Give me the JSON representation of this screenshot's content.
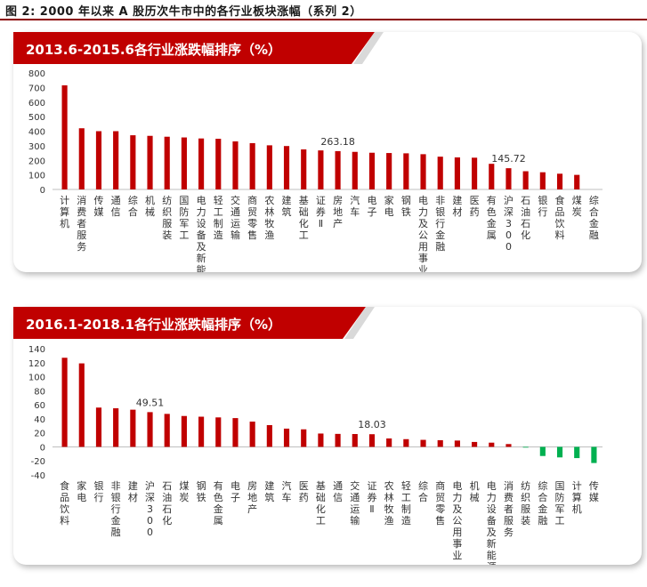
{
  "figure": {
    "title": "图 2: 2000 年以来 A 股历次牛市中的各行业板块涨幅（系列 2）",
    "colors": {
      "positive": "#c00000",
      "negative": "#00b050",
      "banner": "#c00000",
      "banner_text": "#ffffff"
    }
  },
  "chart_data": [
    {
      "type": "bar",
      "title": "2013.6-2015.6各行业涨跌幅排序（%）",
      "categories": [
        "计算机",
        "消费者服务",
        "传媒",
        "通信",
        "综合",
        "机械",
        "纺织服装",
        "国防军工",
        "电力设备及新能源",
        "轻工制造",
        "交通运输",
        "商贸零售",
        "农林牧渔",
        "建筑",
        "基础化工",
        "证券Ⅱ",
        "房地产",
        "汽车",
        "电子",
        "家电",
        "钢铁",
        "电力及公用事业",
        "非银行金融",
        "建材",
        "医药",
        "有色金属",
        "沪深300",
        "石油石化",
        "银行",
        "食品饮料",
        "煤炭",
        "综合金融"
      ],
      "values": [
        715,
        420,
        400,
        400,
        372,
        368,
        362,
        357,
        350,
        348,
        330,
        318,
        303,
        298,
        275,
        268,
        263.18,
        258,
        252,
        250,
        248,
        242,
        225,
        220,
        218,
        176,
        145.72,
        125,
        118,
        108,
        100,
        0
      ],
      "data_labels": [
        {
          "category": "房地产",
          "text": "263.18"
        },
        {
          "category": "沪深300",
          "text": "145.72"
        }
      ],
      "ylim": [
        0,
        800
      ],
      "yticks": [
        0,
        100,
        200,
        300,
        400,
        500,
        600,
        700,
        800
      ],
      "xlabel": "",
      "ylabel": "",
      "grid": false,
      "legend": "none"
    },
    {
      "type": "bar",
      "title": "2016.1-2018.1各行业涨跌幅排序（%）",
      "categories": [
        "食品饮料",
        "家电",
        "银行",
        "非银行金融",
        "建材",
        "沪深300",
        "石油石化",
        "煤炭",
        "钢铁",
        "有色金属",
        "电子",
        "房地产",
        "建筑",
        "汽车",
        "医药",
        "基础化工",
        "通信",
        "交通运输",
        "证券Ⅱ",
        "农林牧渔",
        "轻工制造",
        "综合",
        "商贸零售",
        "电力及公用事业",
        "机械",
        "电力设备及新能源",
        "消费者服务",
        "纺织服装",
        "综合金融",
        "国防军工",
        "计算机",
        "传媒"
      ],
      "values": [
        127,
        119,
        56,
        55,
        53,
        49.51,
        47,
        44,
        43,
        42,
        41,
        36,
        31,
        26,
        25,
        19,
        18.5,
        18.3,
        18.03,
        12,
        11,
        10,
        9.5,
        9,
        7,
        6,
        4,
        -1,
        -13,
        -15,
        -16,
        -23
      ],
      "data_labels": [
        {
          "category": "沪深300",
          "text": "49.51"
        },
        {
          "category": "证券Ⅱ",
          "text": "18.03"
        }
      ],
      "ylim": [
        -40,
        140
      ],
      "yticks": [
        -40,
        -20,
        0,
        20,
        40,
        60,
        80,
        100,
        120,
        140
      ],
      "xlabel": "",
      "ylabel": "",
      "grid": false,
      "legend": "none"
    }
  ]
}
